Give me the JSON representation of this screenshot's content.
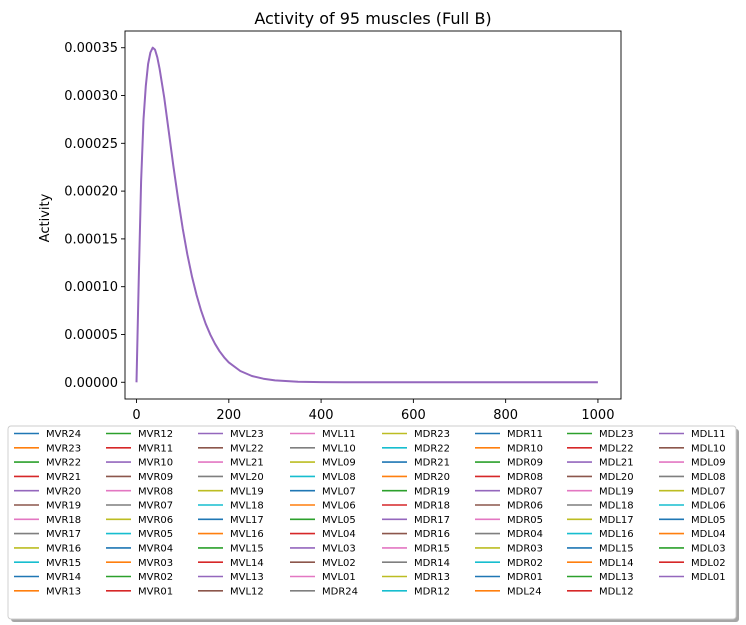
{
  "chart_data": {
    "type": "line",
    "title": "Activity of 95 muscles (Full B)",
    "xlabel": "",
    "ylabel": "Activity",
    "xlim": [
      -25,
      1050
    ],
    "ylim": [
      -1.75e-05,
      0.0003675
    ],
    "xticks": [
      0,
      200,
      400,
      600,
      800,
      1000
    ],
    "xtick_labels": [
      "0",
      "200",
      "400",
      "600",
      "800",
      "1000"
    ],
    "yticks": [
      0,
      5e-05,
      0.0001,
      0.00015,
      0.0002,
      0.00025,
      0.0003,
      0.00035
    ],
    "ytick_labels": [
      "0.00000",
      "0.00005",
      "0.00010",
      "0.00015",
      "0.00020",
      "0.00025",
      "0.00030",
      "0.00035"
    ],
    "grid": false,
    "legend_position": "below plot, 8 columns, framed with shadow",
    "curve": {
      "x": [
        0,
        5,
        10,
        15,
        20,
        25,
        30,
        35,
        40,
        45,
        50,
        60,
        70,
        80,
        90,
        100,
        110,
        120,
        130,
        140,
        150,
        160,
        170,
        180,
        190,
        200,
        225,
        250,
        275,
        300,
        350,
        400,
        450,
        500,
        600,
        700,
        800,
        900,
        1000
      ],
      "y": [
        0,
        0.00011,
        0.00021,
        0.000275,
        0.00031,
        0.000333,
        0.000345,
        0.00035,
        0.000348,
        0.00034,
        0.000328,
        0.000298,
        0.000262,
        0.000226,
        0.000192,
        0.000161,
        0.000134,
        0.000111,
        9.15e-05,
        7.5e-05,
        6.12e-05,
        4.97e-05,
        4.02e-05,
        3.24e-05,
        2.6e-05,
        2.08e-05,
        1.18e-05,
        6.6e-06,
        3.7e-06,
        2e-06,
        6e-07,
        2e-07,
        5e-08,
        1e-08,
        0,
        0,
        0,
        0,
        0
      ],
      "visible_color": "#9467bd"
    },
    "palette": [
      "#1f77b4",
      "#ff7f0e",
      "#2ca02c",
      "#d62728",
      "#9467bd",
      "#8c564b",
      "#e377c2",
      "#7f7f7f",
      "#bcbd22",
      "#17becf"
    ],
    "legend_columns": [
      [
        "MVR24",
        "MVR23",
        "MVR22",
        "MVR21",
        "MVR20",
        "MVR19",
        "MVR18",
        "MVR17",
        "MVR16",
        "MVR15",
        "MVR14",
        "MVR13"
      ],
      [
        "MVR12",
        "MVR11",
        "MVR10",
        "MVR09",
        "MVR08",
        "MVR07",
        "MVR06",
        "MVR05",
        "MVR04",
        "MVR03",
        "MVR02",
        "MVR01"
      ],
      [
        "MVL23",
        "MVL22",
        "MVL21",
        "MVL20",
        "MVL19",
        "MVL18",
        "MVL17",
        "MVL16",
        "MVL15",
        "MVL14",
        "MVL13",
        "MVL12"
      ],
      [
        "MVL11",
        "MVL10",
        "MVL09",
        "MVL08",
        "MVL07",
        "MVL06",
        "MVL05",
        "MVL04",
        "MVL03",
        "MVL02",
        "MVL01",
        "MDR24"
      ],
      [
        "MDR23",
        "MDR22",
        "MDR21",
        "MDR20",
        "MDR19",
        "MDR18",
        "MDR17",
        "MDR16",
        "MDR15",
        "MDR14",
        "MDR13",
        "MDR12"
      ],
      [
        "MDR11",
        "MDR10",
        "MDR09",
        "MDR08",
        "MDR07",
        "MDR06",
        "MDR05",
        "MDR04",
        "MDR03",
        "MDR02",
        "MDR01",
        "MDL24"
      ],
      [
        "MDL23",
        "MDL22",
        "MDL21",
        "MDL20",
        "MDL19",
        "MDL18",
        "MDL17",
        "MDL16",
        "MDL15",
        "MDL14",
        "MDL13",
        "MDL12"
      ],
      [
        "MDL11",
        "MDL10",
        "MDL09",
        "MDL08",
        "MDL07",
        "MDL06",
        "MDL05",
        "MDL04",
        "MDL03",
        "MDL02",
        "MDL01"
      ]
    ]
  }
}
